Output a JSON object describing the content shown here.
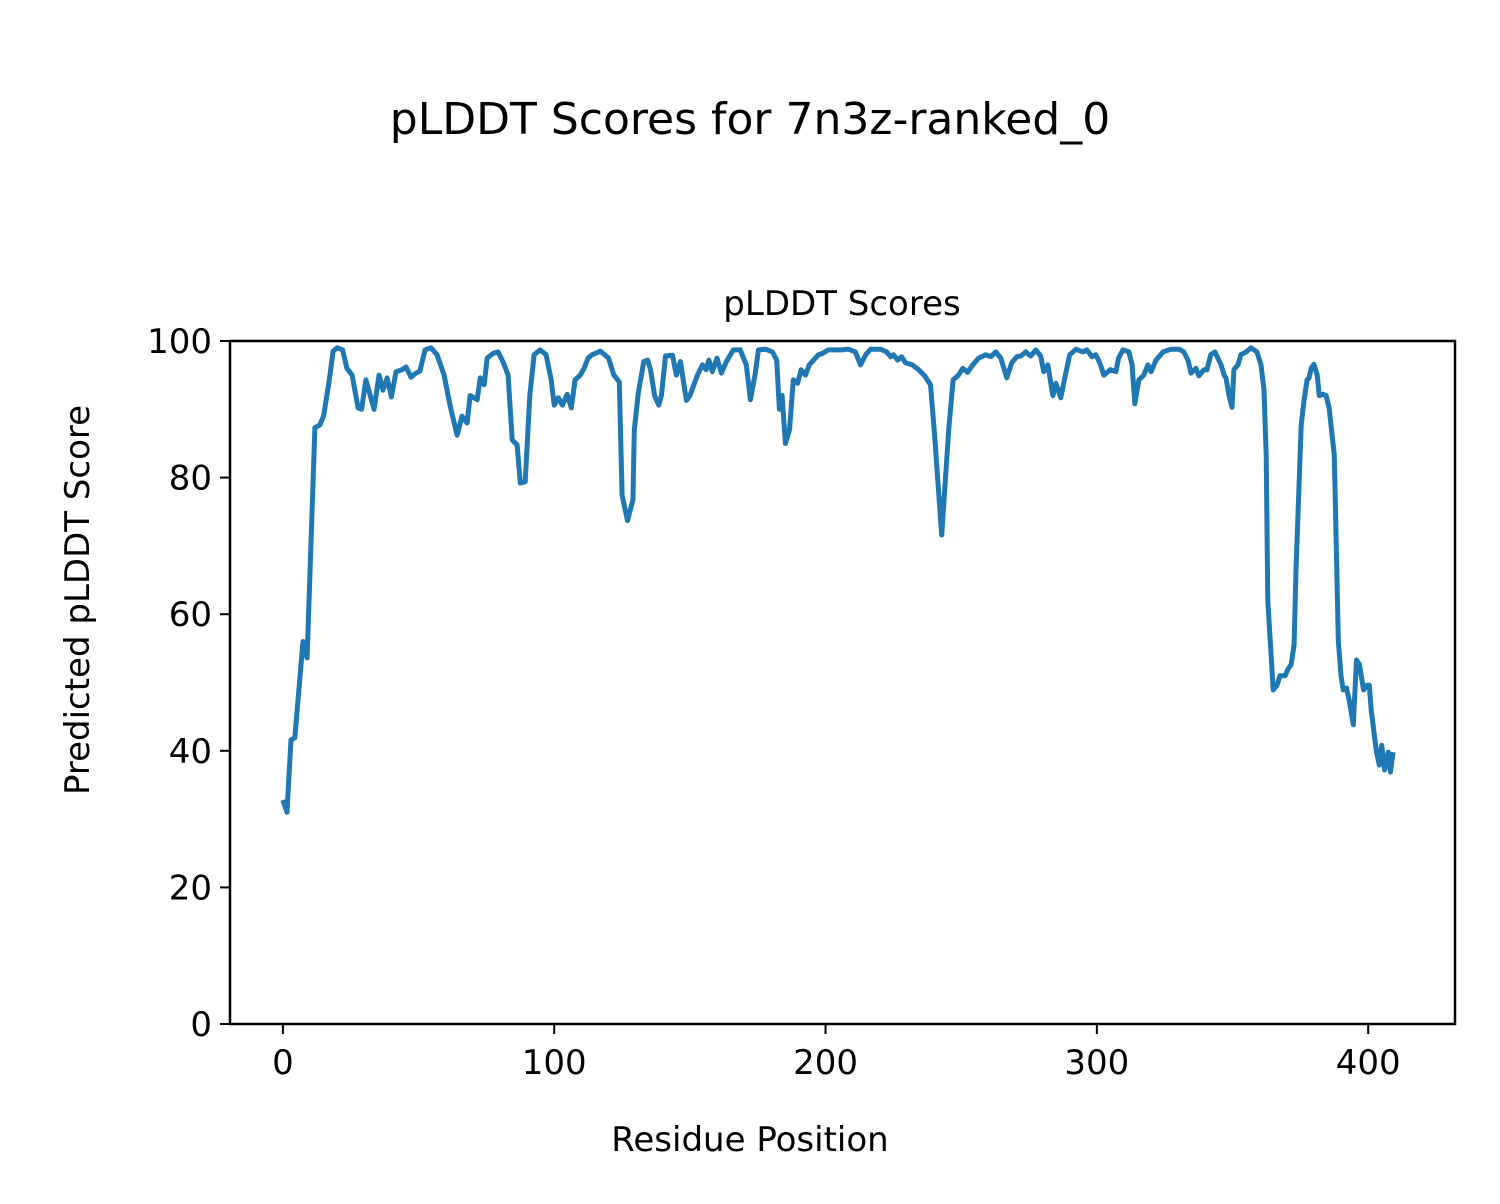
{
  "figure_title": "pLDDT Scores for 7n3z-ranked_0",
  "chart_data": {
    "type": "line",
    "title": "pLDDT Scores",
    "xlabel": "Residue Position",
    "ylabel": "Predicted pLDDT Score",
    "xlim": [
      -19.5,
      432
    ],
    "ylim": [
      0,
      100
    ],
    "xticks": [
      0,
      100,
      200,
      300,
      400
    ],
    "yticks": [
      0,
      20,
      40,
      60,
      80,
      100
    ],
    "grid": false,
    "line_color": "#1f77b4",
    "series": [
      {
        "points": [
          [
            0,
            32.8
          ],
          [
            1.5,
            31
          ],
          [
            3,
            41.6
          ],
          [
            4.4,
            41.9
          ],
          [
            7.4,
            56
          ],
          [
            8.9,
            53.6
          ],
          [
            11.8,
            87.3
          ],
          [
            13.6,
            87.7
          ],
          [
            15,
            89
          ],
          [
            17,
            94
          ],
          [
            18.5,
            98.5
          ],
          [
            20,
            99
          ],
          [
            22,
            98.7
          ],
          [
            23.6,
            96
          ],
          [
            25.5,
            95
          ],
          [
            27.7,
            90.2
          ],
          [
            29,
            90
          ],
          [
            30.6,
            94.3
          ],
          [
            33.6,
            90
          ],
          [
            35.4,
            95
          ],
          [
            36.9,
            92.8
          ],
          [
            38.4,
            94.6
          ],
          [
            40,
            91.8
          ],
          [
            41.7,
            95.5
          ],
          [
            43.9,
            95.8
          ],
          [
            45.4,
            96.2
          ],
          [
            47.2,
            94.7
          ],
          [
            49,
            95.3
          ],
          [
            50.5,
            95.6
          ],
          [
            52.4,
            98.7
          ],
          [
            54.6,
            99
          ],
          [
            56.8,
            98
          ],
          [
            59.4,
            95
          ],
          [
            61.6,
            90.6
          ],
          [
            64.2,
            86.2
          ],
          [
            66,
            89
          ],
          [
            67.9,
            88
          ],
          [
            69,
            92
          ],
          [
            71.6,
            91.4
          ],
          [
            72.7,
            94.6
          ],
          [
            74.2,
            93.6
          ],
          [
            75.3,
            97.5
          ],
          [
            77.5,
            98.2
          ],
          [
            79.3,
            98.4
          ],
          [
            81.2,
            96.9
          ],
          [
            83,
            95
          ],
          [
            84.5,
            85.5
          ],
          [
            86.3,
            84.8
          ],
          [
            87.5,
            79.2
          ],
          [
            89.3,
            79.4
          ],
          [
            91,
            92
          ],
          [
            92.6,
            98
          ],
          [
            94.8,
            98.7
          ],
          [
            97,
            98
          ],
          [
            98.9,
            94.3
          ],
          [
            100,
            90.6
          ],
          [
            101.5,
            91.7
          ],
          [
            103,
            90.6
          ],
          [
            104.8,
            92.2
          ],
          [
            106.3,
            90.2
          ],
          [
            107.7,
            94.3
          ],
          [
            109.6,
            95
          ],
          [
            111,
            96
          ],
          [
            112.5,
            97.5
          ],
          [
            114,
            98
          ],
          [
            117,
            98.5
          ],
          [
            120,
            97.5
          ],
          [
            122,
            95
          ],
          [
            124,
            94
          ],
          [
            125,
            77.4
          ],
          [
            127,
            73.7
          ],
          [
            129,
            76.7
          ],
          [
            129.5,
            87
          ],
          [
            131,
            92.4
          ],
          [
            133,
            97
          ],
          [
            134.4,
            97.2
          ],
          [
            135.5,
            95.8
          ],
          [
            137,
            92
          ],
          [
            138.5,
            90.6
          ],
          [
            139.5,
            92
          ],
          [
            141,
            97.8
          ],
          [
            143.6,
            97.9
          ],
          [
            145,
            95
          ],
          [
            146.5,
            97
          ],
          [
            148.7,
            91.3
          ],
          [
            150,
            92
          ],
          [
            152.8,
            95
          ],
          [
            154.6,
            96.5
          ],
          [
            156,
            95.8
          ],
          [
            157,
            97.2
          ],
          [
            158.3,
            95.5
          ],
          [
            160,
            97.5
          ],
          [
            161.6,
            95.3
          ],
          [
            163.5,
            97
          ],
          [
            166,
            98.7
          ],
          [
            168.6,
            98.7
          ],
          [
            170.8,
            96.5
          ],
          [
            172.3,
            91.4
          ],
          [
            174,
            95
          ],
          [
            175.3,
            98.7
          ],
          [
            177.9,
            98.8
          ],
          [
            180.4,
            98.4
          ],
          [
            182,
            97.2
          ],
          [
            183,
            90
          ],
          [
            184,
            92
          ],
          [
            185.2,
            85
          ],
          [
            186.7,
            87
          ],
          [
            188.1,
            94.3
          ],
          [
            189.7,
            93.8
          ],
          [
            191,
            95.8
          ],
          [
            192.6,
            95
          ],
          [
            194,
            96.5
          ],
          [
            195.6,
            97.2
          ],
          [
            197.4,
            98
          ],
          [
            199,
            98.2
          ],
          [
            201,
            98.7
          ],
          [
            204,
            98.7
          ],
          [
            206,
            98.7
          ],
          [
            208.5,
            98.8
          ],
          [
            211,
            98.4
          ],
          [
            212.9,
            96.5
          ],
          [
            214.8,
            98
          ],
          [
            216.6,
            98.8
          ],
          [
            220.3,
            98.8
          ],
          [
            222.5,
            98.4
          ],
          [
            224,
            97.7
          ],
          [
            225,
            98
          ],
          [
            226.6,
            97.2
          ],
          [
            228,
            97.7
          ],
          [
            229.5,
            96.8
          ],
          [
            232,
            96.5
          ],
          [
            234.3,
            95.8
          ],
          [
            236.5,
            94.9
          ],
          [
            238.7,
            93.6
          ],
          [
            240.2,
            86.2
          ],
          [
            242.8,
            71.6
          ],
          [
            245.4,
            87
          ],
          [
            247,
            94.3
          ],
          [
            249,
            95
          ],
          [
            250.6,
            96
          ],
          [
            252.4,
            95.4
          ],
          [
            254.2,
            96.5
          ],
          [
            256.5,
            97.5
          ],
          [
            259,
            98
          ],
          [
            260.9,
            97.7
          ],
          [
            262.7,
            98.4
          ],
          [
            264.6,
            97.5
          ],
          [
            266.8,
            94.6
          ],
          [
            268.6,
            96.8
          ],
          [
            270.5,
            97.7
          ],
          [
            272,
            97.8
          ],
          [
            273.8,
            98.4
          ],
          [
            275.6,
            97.8
          ],
          [
            277.5,
            98.7
          ],
          [
            279.3,
            97.8
          ],
          [
            280.4,
            95.5
          ],
          [
            281.9,
            96.5
          ],
          [
            283.8,
            92
          ],
          [
            284.9,
            93.8
          ],
          [
            286.7,
            91.7
          ],
          [
            288.2,
            94.6
          ],
          [
            290,
            98
          ],
          [
            292.3,
            98.8
          ],
          [
            294.8,
            98.4
          ],
          [
            296.3,
            98.7
          ],
          [
            298.2,
            97.7
          ],
          [
            299.6,
            98
          ],
          [
            301.1,
            96.8
          ],
          [
            302.6,
            95
          ],
          [
            305,
            95.8
          ],
          [
            307,
            95.5
          ],
          [
            308,
            97.5
          ],
          [
            309.6,
            98.7
          ],
          [
            311.8,
            98.4
          ],
          [
            313,
            96.5
          ],
          [
            314,
            90.8
          ],
          [
            315.5,
            94.3
          ],
          [
            317.3,
            95
          ],
          [
            318.8,
            96.5
          ],
          [
            320,
            95.5
          ],
          [
            321.8,
            97.2
          ],
          [
            324.4,
            98.4
          ],
          [
            327.3,
            98.8
          ],
          [
            330.3,
            98.8
          ],
          [
            332,
            98.4
          ],
          [
            333.6,
            97.2
          ],
          [
            334.7,
            95.3
          ],
          [
            336.5,
            96
          ],
          [
            337.6,
            94.9
          ],
          [
            339.5,
            95.8
          ],
          [
            340.6,
            95.8
          ],
          [
            342,
            98
          ],
          [
            343.5,
            98.4
          ],
          [
            345.8,
            96.5
          ],
          [
            346.9,
            95
          ],
          [
            347.6,
            94.6
          ],
          [
            348.7,
            92
          ],
          [
            349.8,
            90.3
          ],
          [
            350.5,
            95.8
          ],
          [
            352,
            96.5
          ],
          [
            353.1,
            98
          ],
          [
            355,
            98.4
          ],
          [
            356.8,
            99
          ],
          [
            359,
            98.4
          ],
          [
            360.5,
            96.5
          ],
          [
            361.6,
            92.8
          ],
          [
            362.4,
            83.3
          ],
          [
            363,
            62
          ],
          [
            365,
            48.9
          ],
          [
            366.4,
            49.6
          ],
          [
            367.5,
            51
          ],
          [
            369.4,
            51
          ],
          [
            370.5,
            52
          ],
          [
            371.6,
            52.6
          ],
          [
            372.7,
            55.5
          ],
          [
            373.4,
            66.5
          ],
          [
            375.3,
            87.7
          ],
          [
            376.4,
            91.4
          ],
          [
            377.5,
            94.3
          ],
          [
            378.2,
            94.6
          ],
          [
            379,
            96
          ],
          [
            380,
            96.6
          ],
          [
            381.2,
            95
          ],
          [
            382,
            92
          ],
          [
            383.4,
            92.2
          ],
          [
            384.5,
            92
          ],
          [
            385.6,
            90.2
          ],
          [
            387.5,
            83.3
          ],
          [
            389,
            56.2
          ],
          [
            390,
            51
          ],
          [
            390.8,
            48.9
          ],
          [
            392,
            49.2
          ],
          [
            393,
            47.4
          ],
          [
            394.5,
            43.8
          ],
          [
            395.7,
            53.3
          ],
          [
            396.8,
            52.6
          ],
          [
            398.3,
            48.9
          ],
          [
            399.6,
            49.6
          ],
          [
            400.4,
            49.6
          ],
          [
            401.1,
            46
          ],
          [
            403,
            40
          ],
          [
            404.1,
            37.9
          ],
          [
            405,
            40.8
          ],
          [
            406,
            37.2
          ],
          [
            407.4,
            39.8
          ],
          [
            408.2,
            36.9
          ],
          [
            409.2,
            39.8
          ]
        ]
      }
    ]
  }
}
